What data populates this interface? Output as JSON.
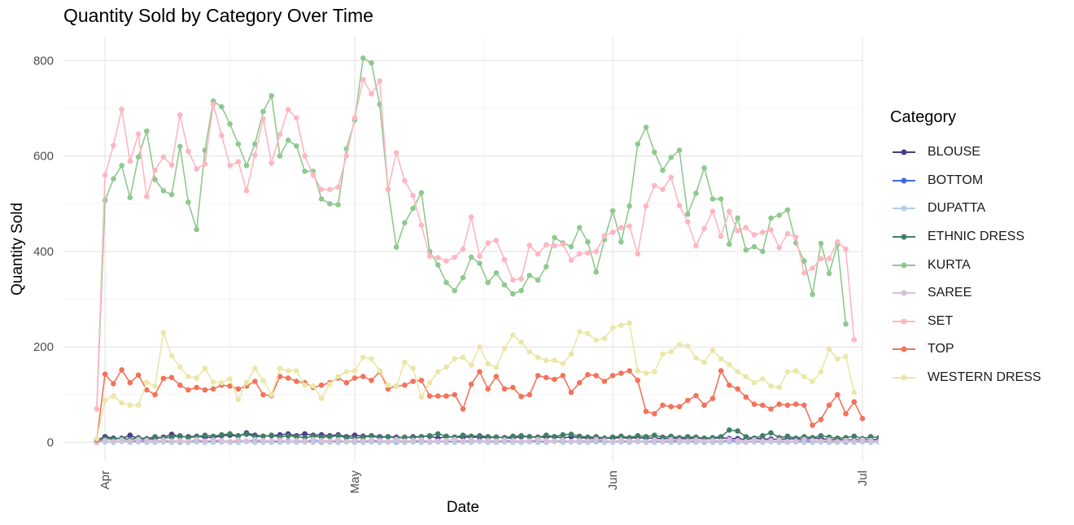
{
  "chart_data": {
    "type": "line",
    "title": "Quantity Sold by Category Over Time",
    "xlabel": "Date",
    "ylabel": "Quantity Sold",
    "legend_title": "Category",
    "legend_position": "right",
    "grid": true,
    "x_range": [
      "2022-03-27",
      "2022-07-01"
    ],
    "ylim": [
      -40,
      850
    ],
    "x_tick_labels": [
      {
        "date": "2022-04-01",
        "label": "Apr"
      },
      {
        "date": "2022-05-01",
        "label": "May"
      },
      {
        "date": "2022-06-01",
        "label": "Jun"
      },
      {
        "date": "2022-07-01",
        "label": "Jul"
      }
    ],
    "y_ticks": [
      0,
      200,
      400,
      600,
      800
    ],
    "x_start": "2022-03-31",
    "series": [
      {
        "name": "BLOUSE",
        "color": "#483d8b",
        "values": [
          5,
          12,
          9,
          8,
          15,
          8,
          6,
          8,
          11,
          17,
          12,
          12,
          13,
          11,
          10,
          14,
          15,
          13,
          20,
          15,
          13,
          14,
          16,
          18,
          14,
          18,
          15,
          16,
          14,
          16,
          12,
          15,
          13,
          14,
          12,
          12,
          11,
          10,
          12,
          12,
          13,
          9,
          12,
          11,
          11,
          11,
          11,
          10,
          11,
          10,
          9,
          12,
          12,
          11,
          11,
          12,
          9,
          12,
          10,
          9,
          8,
          9,
          9,
          10,
          9,
          10,
          9,
          9,
          8,
          9,
          8,
          8,
          9,
          8,
          8,
          10,
          8,
          8,
          6,
          9,
          7,
          7,
          6,
          8,
          7,
          7,
          9,
          8,
          6,
          6,
          5,
          5,
          6,
          6,
          6,
          5,
          6
        ]
      },
      {
        "name": "BOTTOM",
        "color": "#4169e1",
        "values": [
          0,
          3,
          2,
          4,
          1,
          3,
          2,
          4,
          2,
          3,
          1,
          2,
          3,
          1,
          3,
          2,
          1,
          4,
          2,
          3,
          1,
          2,
          2,
          3,
          1,
          2,
          3,
          1,
          2,
          3,
          2,
          1,
          4,
          2,
          3,
          2,
          1,
          2,
          3,
          1,
          2,
          3,
          2,
          1,
          3,
          2,
          4,
          1,
          2,
          3,
          1,
          2,
          3,
          2,
          1,
          3,
          2,
          2,
          4,
          1,
          2,
          3,
          1,
          2,
          3,
          2,
          1,
          3,
          2,
          1,
          4,
          2,
          3,
          1,
          2,
          3,
          2,
          4,
          1,
          2,
          3,
          2,
          1,
          3,
          2,
          4,
          1,
          2,
          3,
          2,
          1,
          3,
          2,
          3,
          1,
          2,
          0
        ]
      },
      {
        "name": "DUPATTA",
        "color": "#b4cde6",
        "values": [
          0,
          1,
          0,
          2,
          0,
          1,
          0,
          0,
          1,
          0,
          2,
          0,
          1,
          0,
          0,
          1,
          0,
          0,
          2,
          0,
          1,
          0,
          0,
          1,
          0,
          1,
          0,
          2,
          0,
          0,
          1,
          0,
          0,
          1,
          0,
          0,
          2,
          0,
          1,
          0,
          0,
          1,
          0,
          0,
          1,
          0,
          2,
          0,
          0,
          1,
          0,
          0,
          1,
          0,
          0,
          2,
          0,
          1,
          0,
          0,
          1,
          0,
          0,
          1,
          0,
          2,
          0,
          0,
          1,
          0,
          0,
          1,
          0,
          2,
          0,
          0,
          1,
          0,
          0,
          1,
          0,
          2,
          0,
          0,
          1,
          0,
          0,
          1,
          0,
          0,
          2,
          0,
          1,
          0,
          0,
          1,
          0
        ]
      },
      {
        "name": "ETHNIC DRESS",
        "color": "#3f7f64",
        "values": [
          2,
          8,
          7,
          9,
          6,
          10,
          8,
          12,
          9,
          11,
          14,
          10,
          12,
          15,
          13,
          16,
          18,
          14,
          17,
          12,
          13,
          15,
          11,
          14,
          12,
          10,
          13,
          11,
          12,
          14,
          10,
          9,
          11,
          13,
          10,
          12,
          9,
          11,
          10,
          12,
          14,
          18,
          13,
          11,
          15,
          13,
          14,
          12,
          11,
          10,
          13,
          14,
          12,
          10,
          15,
          12,
          16,
          17,
          13,
          11,
          12,
          9,
          11,
          13,
          10,
          14,
          12,
          15,
          11,
          13,
          10,
          12,
          11,
          9,
          10,
          12,
          26,
          24,
          12,
          9,
          14,
          20,
          10,
          13,
          9,
          12,
          10,
          14,
          11,
          9,
          10,
          13,
          8,
          12,
          10,
          8,
          5
        ]
      },
      {
        "name": "KURTA",
        "color": "#8fc98f",
        "values": [
          70,
          507,
          552,
          580,
          513,
          598,
          652,
          551,
          527,
          519,
          620,
          503,
          446,
          612,
          715,
          703,
          667,
          625,
          580,
          625,
          693,
          726,
          600,
          633,
          621,
          568,
          568,
          510,
          500,
          498,
          615,
          675,
          805,
          795,
          708,
          530,
          409,
          460,
          490,
          523,
          400,
          372,
          335,
          318,
          345,
          388,
          375,
          335,
          355,
          330,
          311,
          318,
          350,
          340,
          368,
          429,
          418,
          410,
          450,
          420,
          357,
          425,
          485,
          420,
          495,
          625,
          660,
          608,
          570,
          597,
          612,
          478,
          522,
          575,
          510,
          510,
          415,
          470,
          403,
          410,
          400,
          470,
          476,
          487,
          418,
          380,
          310,
          417,
          354,
          415,
          248
        ]
      },
      {
        "name": "SAREE",
        "color": "#d8bfd8",
        "values": [
          0,
          4,
          2,
          5,
          3,
          6,
          4,
          2,
          5,
          3,
          4,
          2,
          6,
          3,
          5,
          4,
          2,
          5,
          3,
          6,
          4,
          3,
          5,
          2,
          4,
          3,
          6,
          4,
          3,
          5,
          2,
          4,
          3,
          5,
          4,
          2,
          6,
          3,
          4,
          5,
          2,
          3,
          4,
          6,
          3,
          5,
          2,
          4,
          3,
          5,
          4,
          2,
          3,
          6,
          4,
          3,
          5,
          2,
          4,
          3,
          6,
          4,
          2,
          5,
          3,
          4,
          2,
          5,
          3,
          6,
          4,
          3,
          5,
          2,
          4,
          3,
          6,
          4,
          2,
          5,
          3,
          4,
          5,
          2,
          3,
          6,
          4,
          3,
          5,
          2,
          4,
          3,
          5,
          4,
          2,
          3,
          0
        ]
      },
      {
        "name": "SET",
        "color": "#ffb6c1",
        "values": [
          70,
          560,
          622,
          698,
          589,
          646,
          515,
          570,
          598,
          581,
          686,
          610,
          573,
          583,
          708,
          643,
          580,
          588,
          527,
          602,
          678,
          585,
          645,
          697,
          680,
          600,
          560,
          530,
          530,
          535,
          600,
          680,
          760,
          730,
          757,
          530,
          607,
          548,
          517,
          455,
          390,
          387,
          380,
          388,
          405,
          472,
          390,
          418,
          423,
          383,
          340,
          343,
          413,
          395,
          414,
          412,
          415,
          382,
          395,
          397,
          400,
          433,
          440,
          450,
          453,
          395,
          495,
          538,
          530,
          555,
          496,
          462,
          412,
          448,
          484,
          432,
          484,
          443,
          450,
          435,
          440,
          445,
          408,
          437,
          430,
          355,
          365,
          385,
          385,
          420,
          405,
          215
        ]
      },
      {
        "name": "TOP",
        "color": "#f4725a",
        "values": [
          5,
          143,
          123,
          152,
          125,
          141,
          110,
          100,
          134,
          136,
          120,
          110,
          115,
          110,
          112,
          120,
          118,
          112,
          118,
          128,
          100,
          98,
          138,
          135,
          128,
          125,
          115,
          120,
          125,
          135,
          125,
          135,
          138,
          130,
          148,
          112,
          118,
          120,
          128,
          130,
          97,
          97,
          97,
          100,
          70,
          122,
          148,
          112,
          138,
          112,
          115,
          96,
          100,
          140,
          136,
          132,
          140,
          105,
          125,
          142,
          140,
          128,
          140,
          145,
          150,
          130,
          65,
          60,
          78,
          75,
          75,
          88,
          98,
          78,
          92,
          150,
          120,
          112,
          95,
          80,
          78,
          70,
          80,
          78,
          80,
          78,
          36,
          48,
          78,
          100,
          60,
          85,
          50
        ]
      },
      {
        "name": "WESTERN DRESS",
        "color": "#ece6a8",
        "values": [
          8,
          88,
          97,
          83,
          78,
          78,
          126,
          118,
          230,
          182,
          158,
          138,
          135,
          155,
          126,
          125,
          133,
          90,
          125,
          155,
          130,
          100,
          155,
          150,
          150,
          120,
          118,
          92,
          122,
          138,
          148,
          150,
          178,
          175,
          150,
          120,
          118,
          168,
          155,
          95,
          125,
          148,
          158,
          175,
          178,
          162,
          200,
          165,
          157,
          197,
          225,
          210,
          190,
          178,
          172,
          172,
          165,
          185,
          232,
          228,
          214,
          218,
          240,
          245,
          250,
          150,
          145,
          148,
          185,
          190,
          205,
          202,
          177,
          168,
          193,
          175,
          163,
          148,
          138,
          125,
          133,
          118,
          115,
          148,
          150,
          138,
          128,
          148,
          195,
          175,
          180,
          105
        ]
      }
    ]
  }
}
